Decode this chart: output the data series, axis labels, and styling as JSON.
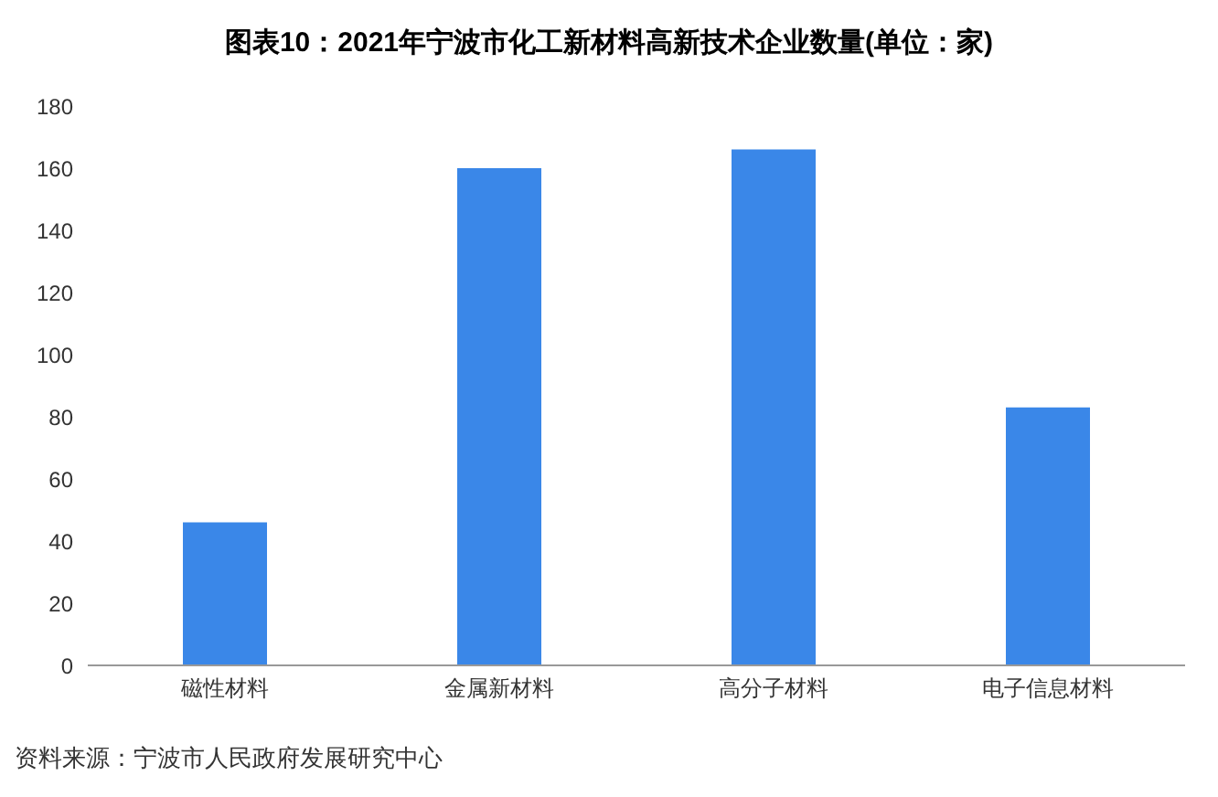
{
  "chart_data": {
    "type": "bar",
    "title": "图表10：2021年宁波市化工新材料高新技术企业数量(单位：家)",
    "categories": [
      "磁性材料",
      "金属新材料",
      "高分子材料",
      "电子信息材料"
    ],
    "values": [
      46,
      160,
      166,
      83
    ],
    "color": "#3a87e8",
    "ylim": [
      0,
      180
    ],
    "yticks": [
      0,
      20,
      40,
      60,
      80,
      100,
      120,
      140,
      160,
      180
    ],
    "grid": false,
    "annotations": [
      "资料来源：宁波市人民政府发展研究中心"
    ]
  }
}
